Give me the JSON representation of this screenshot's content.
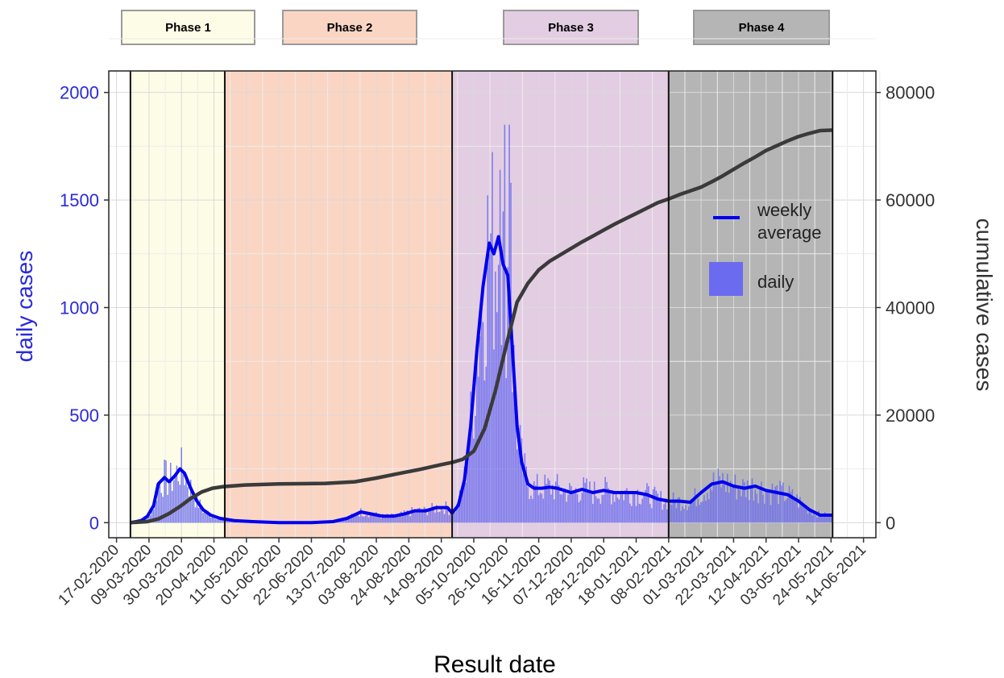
{
  "phases": [
    {
      "label": "Phase 1",
      "color": "#fdfde7",
      "start": "2020-02-26",
      "end": "2020-04-27"
    },
    {
      "label": "Phase 2",
      "color": "#fbd5c4",
      "start": "2020-04-27",
      "end": "2020-09-21"
    },
    {
      "label": "Phase 3",
      "color": "#e3cde2",
      "start": "2020-09-21",
      "end": "2021-02-08"
    },
    {
      "label": "Phase 4",
      "color": "#b5b5b5",
      "start": "2021-02-08",
      "end": "2021-05-25"
    }
  ],
  "chart_data": {
    "type": "bar",
    "xlabel": "Result date",
    "ylabel": "daily cases",
    "y2label": "cumulative cases",
    "xlim": [
      "2020-02-12",
      "2021-06-22"
    ],
    "ylim": [
      -70,
      2100
    ],
    "y2lim": [
      -2800,
      84000
    ],
    "yticks": [
      0,
      500,
      1000,
      1500,
      2000
    ],
    "y2ticks": [
      0,
      20000,
      40000,
      60000,
      80000
    ],
    "xticks": [
      "17-02-2020",
      "09-03-2020",
      "30-03-2020",
      "20-04-2020",
      "11-05-2020",
      "01-06-2020",
      "22-06-2020",
      "13-07-2020",
      "03-08-2020",
      "24-08-2020",
      "14-09-2020",
      "05-10-2020",
      "26-10-2020",
      "16-11-2020",
      "07-12-2020",
      "28-12-2020",
      "18-01-2021",
      "08-02-2021",
      "01-03-2021",
      "22-03-2021",
      "12-04-2021",
      "03-05-2021",
      "24-05-2021",
      "14-06-2021"
    ],
    "grid": true,
    "legend": {
      "position": "right",
      "items": [
        {
          "label": "weekly average",
          "type": "line",
          "color": "#0000ee"
        },
        {
          "label": "daily",
          "type": "bar",
          "color": "#6b6bef"
        }
      ]
    },
    "colors": {
      "daily": "#6b6bef",
      "weekly": "#0000ee",
      "cumulative": "#3a3a3a",
      "left_axis": "#2a2adb"
    },
    "weekly_average": {
      "x": [
        "2020-02-26",
        "2020-03-04",
        "2020-03-08",
        "2020-03-12",
        "2020-03-15",
        "2020-03-19",
        "2020-03-22",
        "2020-03-26",
        "2020-03-29",
        "2020-04-01",
        "2020-04-05",
        "2020-04-09",
        "2020-04-13",
        "2020-04-18",
        "2020-04-24",
        "2020-05-03",
        "2020-05-15",
        "2020-06-01",
        "2020-06-22",
        "2020-07-06",
        "2020-07-15",
        "2020-07-24",
        "2020-07-31",
        "2020-08-07",
        "2020-08-14",
        "2020-08-21",
        "2020-08-28",
        "2020-09-04",
        "2020-09-11",
        "2020-09-18",
        "2020-09-21",
        "2020-09-25",
        "2020-09-29",
        "2020-10-03",
        "2020-10-07",
        "2020-10-11",
        "2020-10-15",
        "2020-10-18",
        "2020-10-21",
        "2020-10-24",
        "2020-10-27",
        "2020-10-30",
        "2020-11-02",
        "2020-11-05",
        "2020-11-09",
        "2020-11-13",
        "2020-11-18",
        "2020-11-23",
        "2020-11-28",
        "2020-12-07",
        "2020-12-14",
        "2020-12-21",
        "2020-12-28",
        "2021-01-04",
        "2021-01-11",
        "2021-01-18",
        "2021-01-25",
        "2021-02-01",
        "2021-02-08",
        "2021-02-15",
        "2021-02-22",
        "2021-03-01",
        "2021-03-08",
        "2021-03-15",
        "2021-03-22",
        "2021-03-29",
        "2021-04-05",
        "2021-04-12",
        "2021-04-19",
        "2021-04-26",
        "2021-05-03",
        "2021-05-10",
        "2021-05-17",
        "2021-05-25"
      ],
      "values": [
        0,
        10,
        30,
        80,
        180,
        210,
        190,
        220,
        250,
        230,
        160,
        100,
        60,
        35,
        20,
        10,
        5,
        0,
        0,
        5,
        20,
        50,
        40,
        30,
        30,
        40,
        55,
        55,
        70,
        70,
        45,
        80,
        200,
        450,
        800,
        1100,
        1300,
        1250,
        1330,
        1200,
        1150,
        800,
        450,
        280,
        180,
        160,
        160,
        165,
        160,
        140,
        155,
        140,
        150,
        140,
        140,
        140,
        130,
        110,
        100,
        100,
        95,
        140,
        180,
        190,
        170,
        160,
        170,
        150,
        140,
        130,
        100,
        60,
        35,
        35
      ]
    },
    "cumulative": {
      "x": [
        "2020-02-26",
        "2020-03-08",
        "2020-03-15",
        "2020-03-22",
        "2020-03-29",
        "2020-04-05",
        "2020-04-12",
        "2020-04-19",
        "2020-04-26",
        "2020-05-10",
        "2020-06-01",
        "2020-07-01",
        "2020-07-20",
        "2020-08-03",
        "2020-08-17",
        "2020-08-31",
        "2020-09-14",
        "2020-09-21",
        "2020-09-28",
        "2020-10-05",
        "2020-10-12",
        "2020-10-19",
        "2020-10-26",
        "2020-11-02",
        "2020-11-09",
        "2020-11-16",
        "2020-11-23",
        "2020-11-30",
        "2020-12-07",
        "2020-12-14",
        "2020-12-21",
        "2020-12-28",
        "2021-01-04",
        "2021-01-11",
        "2021-01-18",
        "2021-01-25",
        "2021-02-01",
        "2021-02-08",
        "2021-02-15",
        "2021-02-22",
        "2021-03-01",
        "2021-03-08",
        "2021-03-15",
        "2021-03-22",
        "2021-03-29",
        "2021-04-05",
        "2021-04-12",
        "2021-04-19",
        "2021-04-26",
        "2021-05-03",
        "2021-05-10",
        "2021-05-17",
        "2021-05-25"
      ],
      "values": [
        0,
        200,
        700,
        1700,
        3000,
        4500,
        5700,
        6400,
        6700,
        7000,
        7200,
        7300,
        7600,
        8300,
        9100,
        9900,
        10800,
        11200,
        11800,
        13300,
        17500,
        24500,
        33000,
        41000,
        44500,
        47000,
        48600,
        49800,
        51000,
        52200,
        53300,
        54400,
        55500,
        56500,
        57500,
        58500,
        59500,
        60200,
        61000,
        61700,
        62400,
        63400,
        64500,
        65700,
        66900,
        68000,
        69200,
        70100,
        71000,
        71800,
        72400,
        72900,
        73000
      ]
    },
    "daily_note": "daily bars rendered from weekly average with day-to-day variation",
    "daily_peaks": [
      {
        "x": "2020-10-25",
        "value": 1850
      },
      {
        "x": "2020-10-28",
        "value": 1850
      },
      {
        "x": "2020-10-22",
        "value": 1640
      },
      {
        "x": "2020-10-29",
        "value": 1580
      }
    ]
  }
}
